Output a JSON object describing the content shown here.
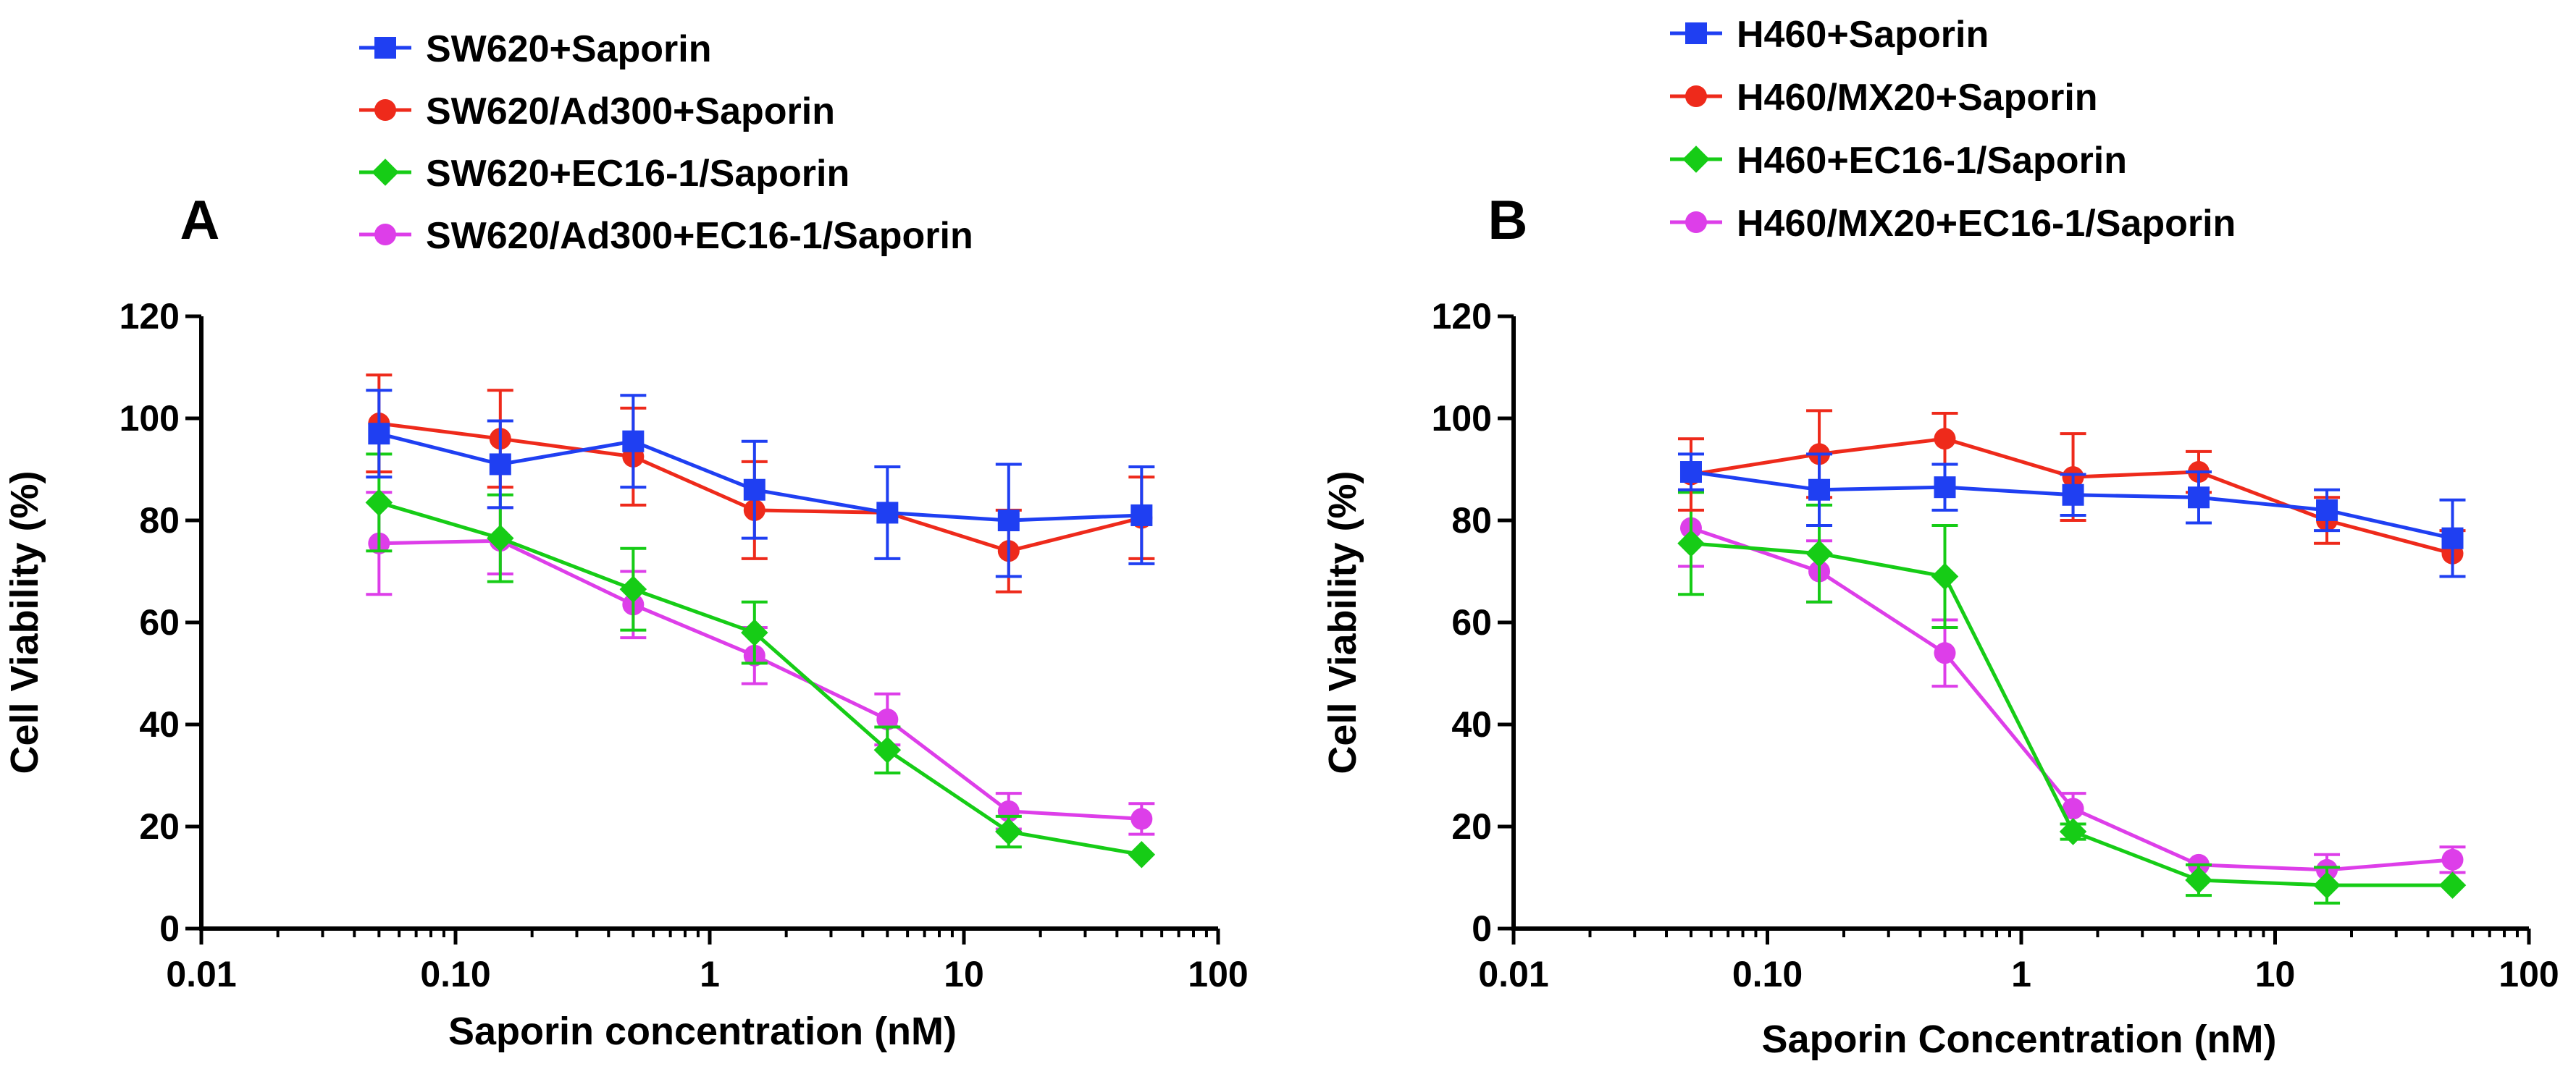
{
  "chart_data": [
    {
      "panel_label": "A",
      "type": "line",
      "x_scale": "log",
      "xlabel": "Saporin concentration (nM)",
      "ylabel": "Cell Viability (%)",
      "xlim": [
        0.01,
        100
      ],
      "ylim": [
        0,
        120
      ],
      "x_ticks": [
        0.01,
        0.1,
        1,
        10,
        100
      ],
      "x_tick_labels": [
        "0.01",
        "0.10",
        "1",
        "10",
        "100"
      ],
      "y_ticks": [
        0,
        20,
        40,
        60,
        80,
        100,
        120
      ],
      "y_tick_labels": [
        "0",
        "20",
        "40",
        "60",
        "80",
        "100",
        "120"
      ],
      "grid": false,
      "legend_position": "top",
      "x": [
        0.05,
        0.15,
        0.5,
        1.5,
        5,
        15,
        50
      ],
      "series": [
        {
          "name": "SW620+Saporin",
          "color": "#1f3ff2",
          "marker": "square",
          "values": [
            97,
            91,
            95.5,
            86,
            81.5,
            80,
            81
          ],
          "errors": [
            8.5,
            8.5,
            9,
            9.5,
            9,
            11,
            9.5
          ]
        },
        {
          "name": "SW620/Ad300+Saporin",
          "color": "#ee2a1b",
          "marker": "circle",
          "values": [
            99,
            96,
            92.5,
            82,
            81.5,
            74,
            80.5
          ],
          "errors": [
            9.5,
            9.5,
            9.5,
            9.5,
            0,
            8,
            8
          ]
        },
        {
          "name": "SW620+EC16-1/Saporin",
          "color": "#16cc16",
          "marker": "diamond",
          "values": [
            83.5,
            76.5,
            66.5,
            58,
            35,
            19,
            14.5
          ],
          "errors": [
            9.5,
            8.5,
            8,
            6,
            4.5,
            3,
            0
          ]
        },
        {
          "name": "SW620/Ad300+EC16-1/Saporin",
          "color": "#dd3ee9",
          "marker": "circle",
          "values": [
            75.5,
            76,
            63.5,
            53.5,
            41,
            23,
            21.5
          ],
          "errors": [
            10,
            6.5,
            6.5,
            5.5,
            5,
            3.5,
            3
          ]
        }
      ]
    },
    {
      "panel_label": "B",
      "type": "line",
      "x_scale": "log",
      "xlabel": "Saporin Concentration (nM)",
      "ylabel": "Cell Viability (%)",
      "xlim": [
        0.01,
        100
      ],
      "ylim": [
        0,
        120
      ],
      "x_ticks": [
        0.01,
        0.1,
        1,
        10,
        100
      ],
      "x_tick_labels": [
        "0.01",
        "0.10",
        "1",
        "10",
        "100"
      ],
      "y_ticks": [
        0,
        20,
        40,
        60,
        80,
        100,
        120
      ],
      "y_tick_labels": [
        "0",
        "20",
        "40",
        "60",
        "80",
        "100",
        "120"
      ],
      "grid": false,
      "legend_position": "top",
      "x": [
        0.05,
        0.16,
        0.5,
        1.6,
        5,
        16,
        50
      ],
      "series": [
        {
          "name": "H460+Saporin",
          "color": "#1f3ff2",
          "marker": "square",
          "values": [
            89.5,
            86,
            86.5,
            85,
            84.5,
            82,
            76.5
          ],
          "errors": [
            3.5,
            7,
            4.5,
            4,
            5,
            4,
            7.5
          ]
        },
        {
          "name": "H460/MX20+Saporin",
          "color": "#ee2a1b",
          "marker": "circle",
          "values": [
            89,
            93,
            96,
            88.5,
            89.5,
            80,
            73.5
          ],
          "errors": [
            7,
            8.5,
            5,
            8.5,
            4,
            4.5,
            4.5
          ]
        },
        {
          "name": "H460+EC16-1/Saporin",
          "color": "#16cc16",
          "marker": "diamond",
          "values": [
            75.5,
            73.5,
            69,
            19,
            9.5,
            8.5,
            8.5
          ],
          "errors": [
            10,
            9.5,
            10,
            1.5,
            3,
            3.5,
            0
          ]
        },
        {
          "name": "H460/MX20+EC16-1/Saporin",
          "color": "#dd3ee9",
          "marker": "circle",
          "values": [
            78.5,
            70,
            54,
            23.5,
            12.5,
            11.5,
            13.5
          ],
          "errors": [
            7.5,
            6,
            6.5,
            3,
            0,
            3,
            2.5
          ]
        }
      ]
    }
  ]
}
